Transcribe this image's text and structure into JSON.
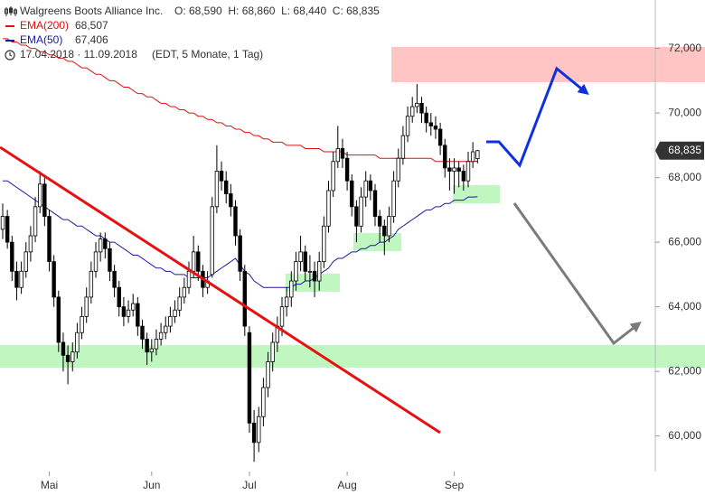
{
  "chart_data": {
    "type": "candlestick",
    "title": "Walgreens Boots Alliance Inc.",
    "ohlc_label": "O: 68,590  H: 68,860  L: 68,440  C: 68,835",
    "date_range": "17.04.2018 · 11.09.2018",
    "period": "(EDT, 5 Monate, 1 Tag)",
    "last_label": "68,835",
    "categories": [
      null,
      null,
      null,
      null,
      null,
      null,
      null,
      null,
      null,
      null,
      "Mai",
      null,
      null,
      null,
      null,
      null,
      null,
      null,
      null,
      null,
      null,
      null,
      null,
      null,
      null,
      null,
      null,
      null,
      null,
      null,
      null,
      null,
      "Jun",
      null,
      null,
      null,
      null,
      null,
      null,
      null,
      null,
      null,
      null,
      null,
      null,
      null,
      null,
      null,
      null,
      null,
      null,
      null,
      null,
      "Jul",
      null,
      null,
      null,
      null,
      null,
      null,
      null,
      null,
      null,
      null,
      null,
      null,
      null,
      null,
      null,
      null,
      null,
      null,
      null,
      null,
      "Aug",
      null,
      null,
      null,
      null,
      null,
      null,
      null,
      null,
      null,
      null,
      null,
      null,
      null,
      null,
      null,
      null,
      null,
      null,
      null,
      null,
      null,
      null,
      "Sep",
      null,
      null,
      null,
      null,
      null
    ],
    "open": [
      66.4,
      66.8,
      66.0,
      65.1,
      64.6,
      65.1,
      65.7,
      66.2,
      67.1,
      67.8,
      66.8,
      65.4,
      64.3,
      62.9,
      62.5,
      62.3,
      62.6,
      63.2,
      63.7,
      64.3,
      65.1,
      65.7,
      66.1,
      65.8,
      65.1,
      64.6,
      64.0,
      63.7,
      63.9,
      64.1,
      63.4,
      63.0,
      62.6,
      62.7,
      63.0,
      63.2,
      63.4,
      63.7,
      63.9,
      64.3,
      64.6,
      65.1,
      65.7,
      65.1,
      64.6,
      65.0,
      67.1,
      68.2,
      67.9,
      67.5,
      67.1,
      66.2,
      65.1,
      63.2,
      60.4,
      59.8,
      60.6,
      61.5,
      62.3,
      62.9,
      63.4,
      64.0,
      64.3,
      64.8,
      65.4,
      65.7,
      65.1,
      65.1,
      64.8,
      65.4,
      66.5,
      67.6,
      68.5,
      68.9,
      68.6,
      67.9,
      67.1,
      66.5,
      67.4,
      67.9,
      67.6,
      66.8,
      66.5,
      66.2,
      66.8,
      67.9,
      68.6,
      69.3,
      69.9,
      70.2,
      70.3,
      70.0,
      69.7,
      69.6,
      69.5,
      69.0,
      68.3,
      68.2,
      68.3,
      68.2,
      67.9,
      68.5,
      68.59
    ],
    "high": [
      67.2,
      67.0,
      66.2,
      65.4,
      65.4,
      66.0,
      66.5,
      67.4,
      68.2,
      68.0,
      67.0,
      65.6,
      64.5,
      63.2,
      62.8,
      62.9,
      63.5,
      64.0,
      64.6,
      65.4,
      66.0,
      66.3,
      66.3,
      66.0,
      65.3,
      64.8,
      64.3,
      64.2,
      64.4,
      64.3,
      63.6,
      63.2,
      63.0,
      63.3,
      63.5,
      63.7,
      64.0,
      64.2,
      64.6,
      64.9,
      65.4,
      66.2,
      65.9,
      65.3,
      65.1,
      67.4,
      69.0,
      68.5,
      68.2,
      67.8,
      67.3,
      66.4,
      65.3,
      63.4,
      60.8,
      60.9,
      61.8,
      62.6,
      63.2,
      63.7,
      64.3,
      64.6,
      65.1,
      65.7,
      66.2,
      65.9,
      65.6,
      65.4,
      65.7,
      66.8,
      67.9,
      68.8,
      69.6,
      69.2,
      68.8,
      68.1,
      67.3,
      67.7,
      68.2,
      68.1,
      67.8,
      67.0,
      66.7,
      67.1,
      68.2,
      68.9,
      69.6,
      70.2,
      70.5,
      70.9,
      70.5,
      70.2,
      70.0,
      69.9,
      69.7,
      69.2,
      68.6,
      68.6,
      68.5,
      68.4,
      68.8,
      69.1,
      68.86
    ],
    "low": [
      66.1,
      65.8,
      64.8,
      64.2,
      64.4,
      64.9,
      65.4,
      66.0,
      66.9,
      66.5,
      65.1,
      64.0,
      62.6,
      62.0,
      61.6,
      62.0,
      62.4,
      63.0,
      63.5,
      64.1,
      64.9,
      65.4,
      65.5,
      64.8,
      64.3,
      63.7,
      63.4,
      63.5,
      63.7,
      63.1,
      62.7,
      62.2,
      62.3,
      62.5,
      62.8,
      63.0,
      63.2,
      63.5,
      63.7,
      64.1,
      64.4,
      64.9,
      64.8,
      64.3,
      64.4,
      64.9,
      66.9,
      67.6,
      67.2,
      66.8,
      65.9,
      64.8,
      63.1,
      60.1,
      59.2,
      59.5,
      60.3,
      61.2,
      62.0,
      62.6,
      63.1,
      63.7,
      64.0,
      64.5,
      65.1,
      64.8,
      64.6,
      64.3,
      64.5,
      65.2,
      66.3,
      67.4,
      68.3,
      68.3,
      67.6,
      66.8,
      66.0,
      66.3,
      67.1,
      67.3,
      66.5,
      66.0,
      65.6,
      66.0,
      66.6,
      67.7,
      68.4,
      69.1,
      69.7,
      70.0,
      69.7,
      69.4,
      69.3,
      69.2,
      68.7,
      68.0,
      67.6,
      67.5,
      67.7,
      67.6,
      67.7,
      68.3,
      68.44
    ],
    "close": [
      66.8,
      66.0,
      65.1,
      64.6,
      65.1,
      65.7,
      66.2,
      67.1,
      67.8,
      66.8,
      65.4,
      64.3,
      62.9,
      62.5,
      62.3,
      62.6,
      63.2,
      63.7,
      64.3,
      65.1,
      65.7,
      66.1,
      65.8,
      65.1,
      64.6,
      64.0,
      63.7,
      63.9,
      64.1,
      63.4,
      63.0,
      62.6,
      62.7,
      63.0,
      63.2,
      63.4,
      63.7,
      63.9,
      64.3,
      64.6,
      65.1,
      65.7,
      65.1,
      64.6,
      64.8,
      67.1,
      68.2,
      67.9,
      67.5,
      67.1,
      66.2,
      65.1,
      63.4,
      60.4,
      59.8,
      60.6,
      61.5,
      62.3,
      62.9,
      63.4,
      64.0,
      64.3,
      64.8,
      65.4,
      65.7,
      65.1,
      65.1,
      64.8,
      65.4,
      66.5,
      67.6,
      68.5,
      68.9,
      68.6,
      67.9,
      67.1,
      66.5,
      67.4,
      67.9,
      67.6,
      66.8,
      66.5,
      66.2,
      66.8,
      67.9,
      68.6,
      69.3,
      69.9,
      70.2,
      70.3,
      70.0,
      69.7,
      69.6,
      69.5,
      69.0,
      68.3,
      68.2,
      68.3,
      68.2,
      67.9,
      68.5,
      68.8,
      68.835
    ],
    "series": [
      {
        "name": "EMA(200)",
        "color": "#e01010",
        "legend_value": "68,507",
        "values": [
          72.3,
          72.3,
          72.2,
          72.2,
          72.1,
          72.1,
          72.0,
          72.0,
          71.9,
          71.9,
          71.8,
          71.8,
          71.7,
          71.7,
          71.6,
          71.6,
          71.5,
          71.4,
          71.4,
          71.3,
          71.2,
          71.2,
          71.1,
          71.0,
          71.0,
          70.9,
          70.8,
          70.8,
          70.7,
          70.6,
          70.6,
          70.5,
          70.5,
          70.4,
          70.3,
          70.3,
          70.2,
          70.2,
          70.1,
          70.1,
          70.0,
          70.0,
          69.9,
          69.9,
          69.8,
          69.8,
          69.7,
          69.7,
          69.6,
          69.6,
          69.5,
          69.5,
          69.4,
          69.4,
          69.3,
          69.3,
          69.2,
          69.2,
          69.1,
          69.1,
          69.1,
          69.0,
          69.0,
          69.0,
          69.0,
          68.9,
          68.9,
          68.9,
          68.9,
          68.8,
          68.8,
          68.8,
          68.8,
          68.8,
          68.7,
          68.7,
          68.7,
          68.7,
          68.7,
          68.7,
          68.7,
          68.6,
          68.6,
          68.6,
          68.6,
          68.6,
          68.6,
          68.6,
          68.6,
          68.6,
          68.6,
          68.6,
          68.6,
          68.5,
          68.5,
          68.5,
          68.5,
          68.5,
          68.5,
          68.5,
          68.5,
          68.5,
          68.507
        ]
      },
      {
        "name": "EMA(50)",
        "color": "#1a1aa0",
        "legend_value": "67,406",
        "values": [
          67.9,
          67.9,
          67.8,
          67.7,
          67.6,
          67.5,
          67.4,
          67.3,
          67.2,
          67.1,
          67.0,
          66.9,
          66.8,
          66.7,
          66.7,
          66.6,
          66.5,
          66.5,
          66.4,
          66.3,
          66.2,
          66.2,
          66.1,
          66.0,
          66.0,
          65.9,
          65.8,
          65.7,
          65.6,
          65.6,
          65.5,
          65.4,
          65.3,
          65.2,
          65.2,
          65.1,
          65.1,
          65.0,
          65.0,
          65.0,
          64.9,
          64.9,
          64.9,
          64.9,
          64.9,
          65.0,
          65.1,
          65.2,
          65.3,
          65.4,
          65.5,
          65.3,
          65.1,
          65.0,
          64.8,
          64.7,
          64.6,
          64.6,
          64.6,
          64.6,
          64.6,
          64.6,
          64.6,
          64.7,
          64.7,
          64.8,
          64.8,
          64.9,
          65.0,
          65.1,
          65.2,
          65.4,
          65.5,
          65.5,
          65.6,
          65.7,
          65.7,
          65.8,
          65.8,
          65.9,
          65.9,
          66.0,
          66.0,
          66.1,
          66.2,
          66.4,
          66.5,
          66.6,
          66.7,
          66.8,
          66.9,
          67.0,
          67.0,
          67.1,
          67.1,
          67.2,
          67.2,
          67.3,
          67.3,
          67.3,
          67.4,
          67.4,
          67.406
        ]
      }
    ],
    "ylim": [
      58.9,
      73.5
    ],
    "yticks": [
      {
        "value": 60,
        "label": "60,000"
      },
      {
        "value": 62,
        "label": "62,000"
      },
      {
        "value": 64,
        "label": "64,000"
      },
      {
        "value": 66,
        "label": "66,000"
      },
      {
        "value": 68,
        "label": "68,000"
      },
      {
        "value": 70,
        "label": "70,000"
      },
      {
        "value": 72,
        "label": "72,000"
      }
    ],
    "up_color": "#ffffff",
    "down_color": "#000000",
    "grid": false
  }
}
